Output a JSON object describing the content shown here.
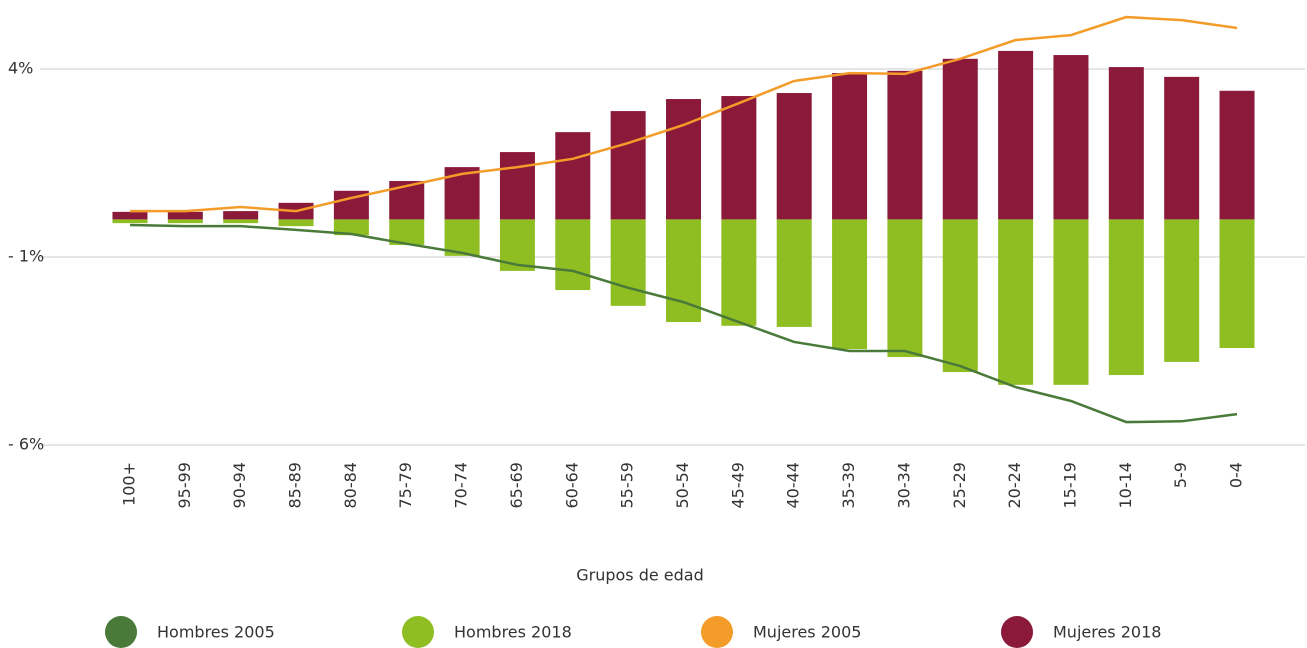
{
  "chart_data": {
    "type": "bar",
    "x_label": "Grupos de edad",
    "categories": [
      "100+",
      "95-99",
      "90-94",
      "85-89",
      "80-84",
      "75-79",
      "70-74",
      "65-69",
      "60-64",
      "55-59",
      "50-54",
      "45-49",
      "40-44",
      "35-39",
      "30-34",
      "25-29",
      "20-24",
      "15-19",
      "10-14",
      "5-9",
      "0-4"
    ],
    "series": [
      {
        "name": "Hombres 2005",
        "type": "line",
        "color": "#4a7a3a",
        "values": [
          -0.15,
          -0.18,
          -0.18,
          -0.28,
          -0.39,
          -0.65,
          -0.89,
          -1.21,
          -1.37,
          -1.82,
          -2.2,
          -2.73,
          -3.26,
          -3.5,
          -3.5,
          -3.9,
          -4.46,
          -4.83,
          -5.39,
          -5.37,
          -5.18
        ]
      },
      {
        "name": "Hombres 2018",
        "type": "bar",
        "color": "#8fbe22",
        "values": [
          -0.1,
          -0.1,
          -0.1,
          -0.18,
          -0.42,
          -0.68,
          -0.97,
          -1.37,
          -1.88,
          -2.3,
          -2.73,
          -2.83,
          -2.86,
          -3.45,
          -3.66,
          -4.06,
          -4.4,
          -4.4,
          -4.14,
          -3.79,
          -3.42
        ]
      },
      {
        "name": "Mujeres 2005",
        "type": "line",
        "color": "#f39c2a",
        "values": [
          0.22,
          0.22,
          0.33,
          0.22,
          0.57,
          0.89,
          1.21,
          1.39,
          1.61,
          2.03,
          2.51,
          3.09,
          3.68,
          3.89,
          3.87,
          4.27,
          4.77,
          4.9,
          5.38,
          5.3,
          5.09
        ]
      },
      {
        "name": "Mujeres 2018",
        "type": "bar",
        "color": "#8b1a3a",
        "values": [
          0.2,
          0.2,
          0.22,
          0.44,
          0.76,
          1.02,
          1.39,
          1.79,
          2.32,
          2.88,
          3.2,
          3.28,
          3.36,
          3.89,
          3.95,
          4.27,
          4.48,
          4.37,
          4.05,
          3.79,
          3.42
        ]
      }
    ],
    "ylim": [
      -6,
      5.6
    ],
    "yticks": [
      {
        "value": 4,
        "label": "4%"
      },
      {
        "value": -1,
        "label": "- 1%"
      },
      {
        "value": -6,
        "label": "- 6%"
      }
    ],
    "grid": true,
    "legend": "bottom"
  }
}
